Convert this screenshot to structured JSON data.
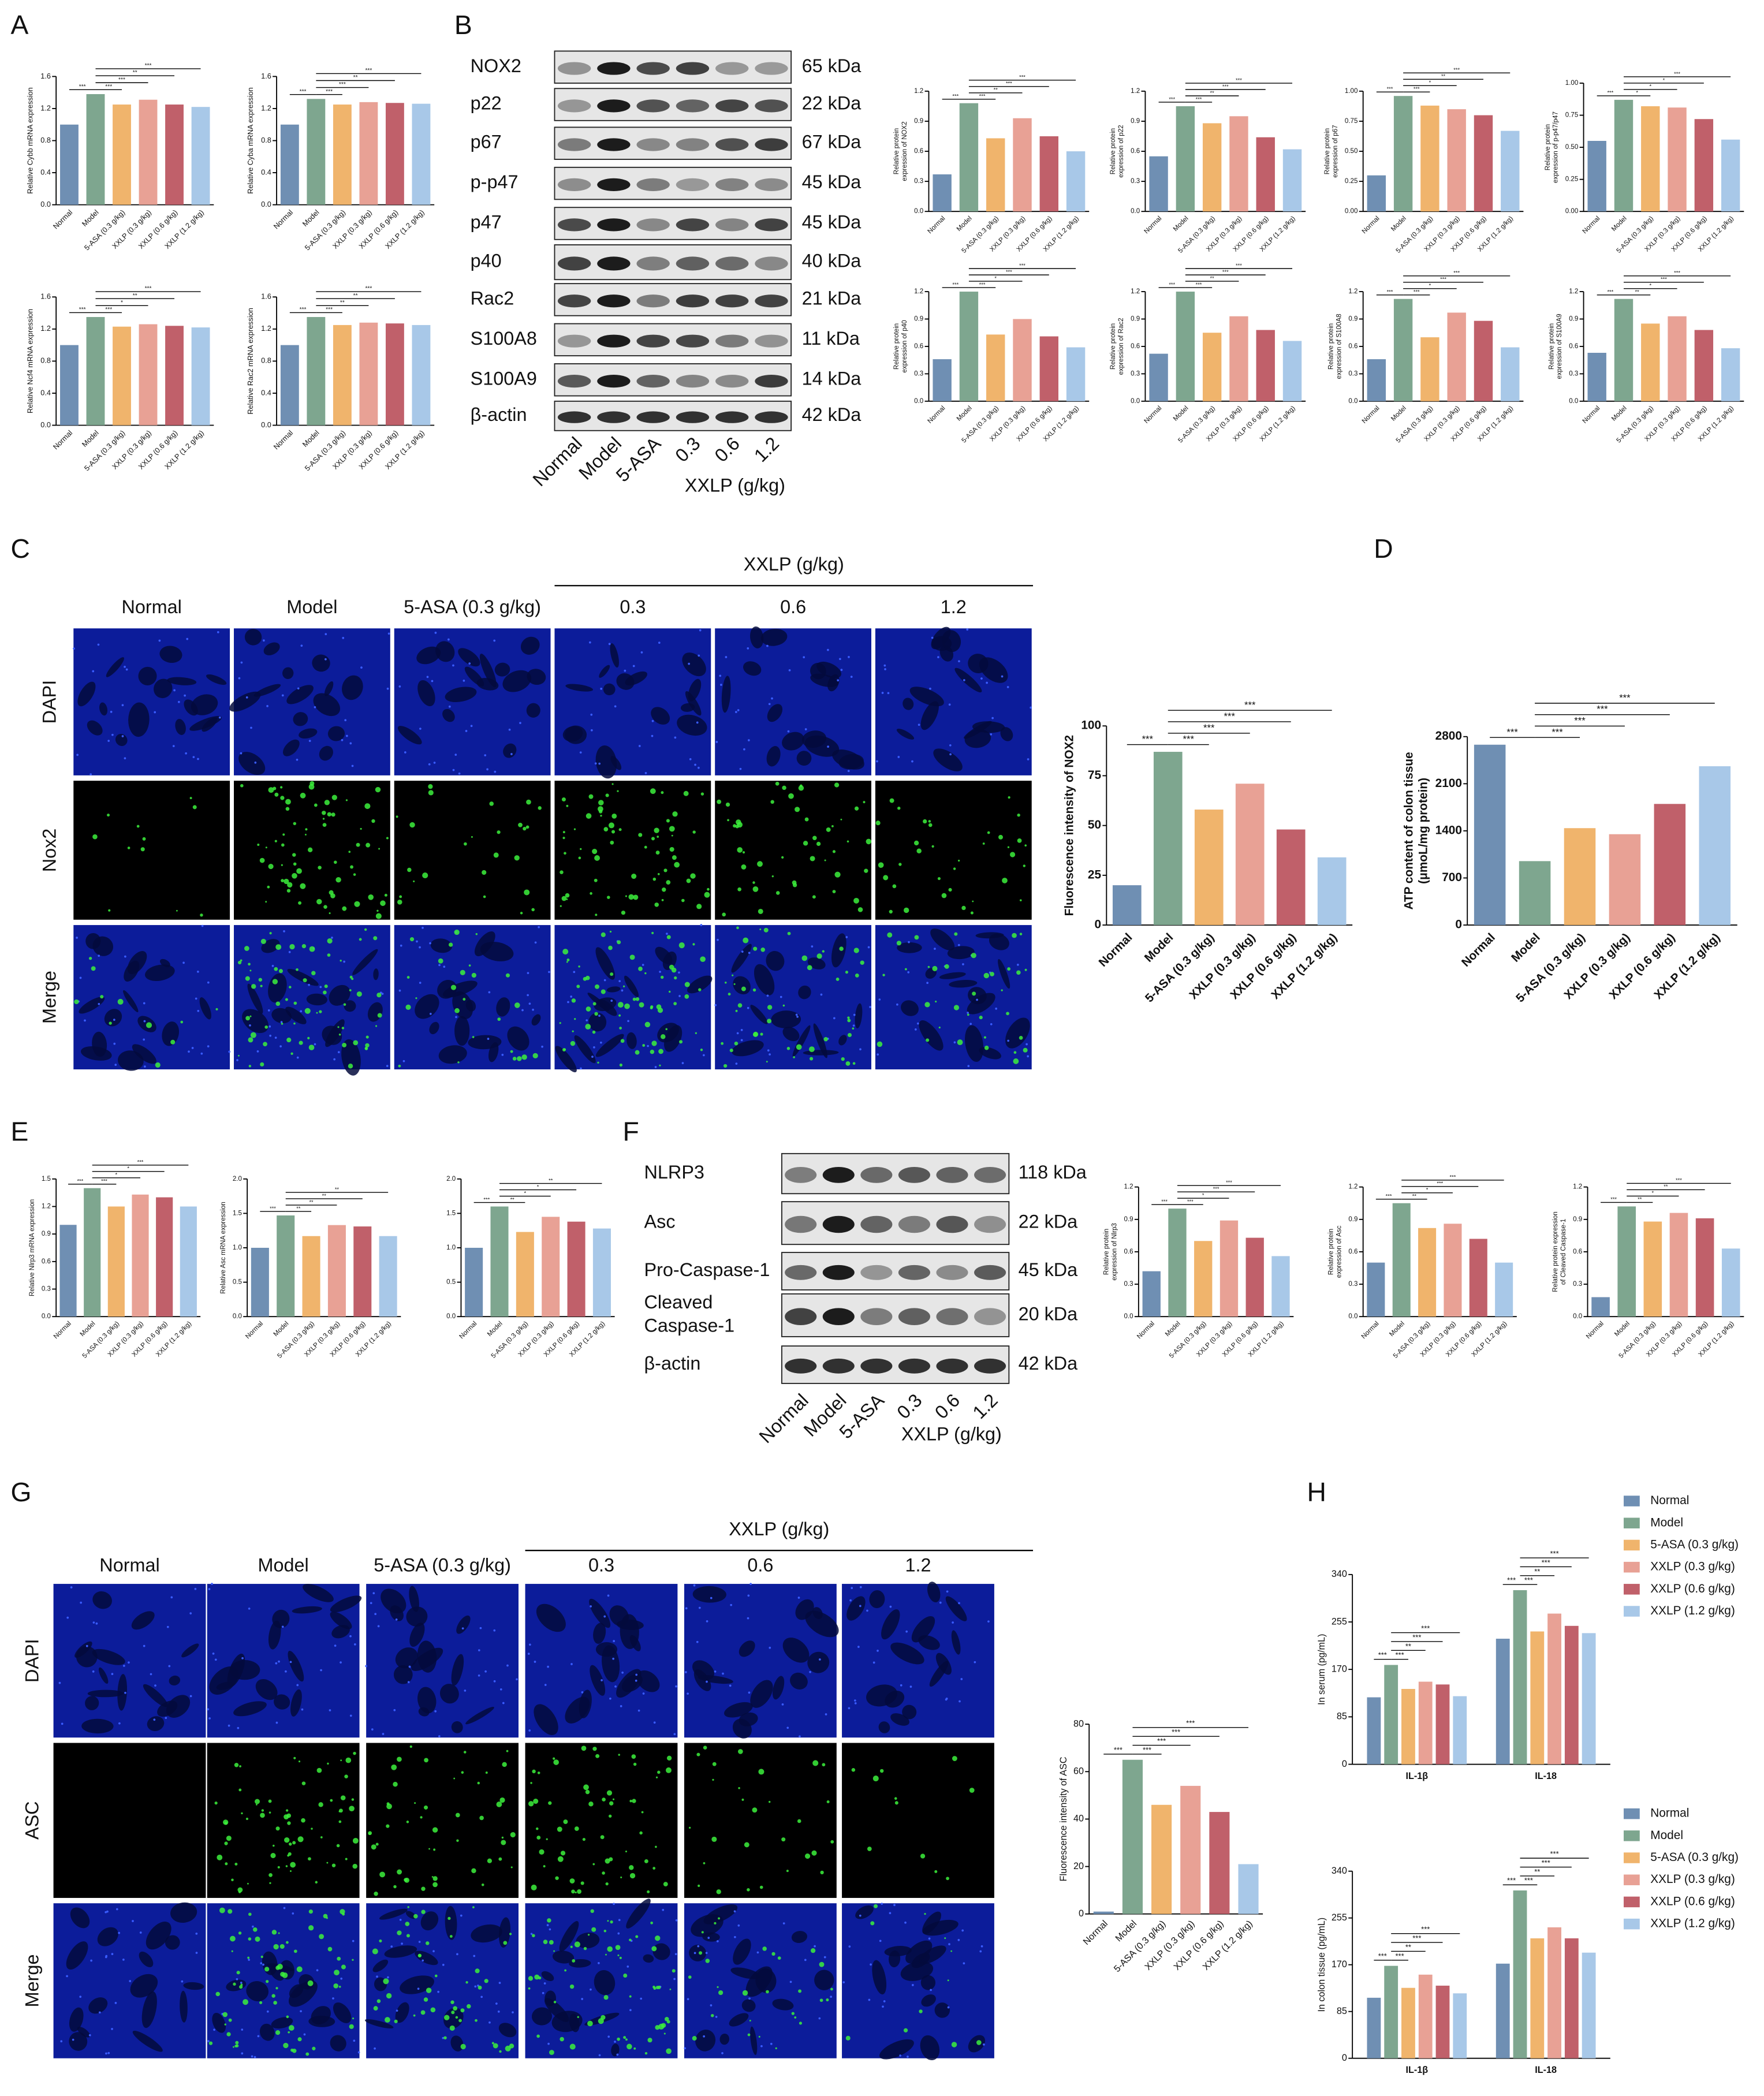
{
  "panel_labels": [
    "A",
    "B",
    "C",
    "D",
    "E",
    "F",
    "G",
    "H"
  ],
  "group_colors": [
    "#6f8fb3",
    "#7ea68f",
    "#f0b46c",
    "#e8a195",
    "#c0606a",
    "#a8c8e8"
  ],
  "blot_B": {
    "rows": [
      {
        "label": "NOX2",
        "size": "65 kDa"
      },
      {
        "label": "p22",
        "size": "22 kDa"
      },
      {
        "label": "p67",
        "size": "67 kDa"
      },
      {
        "label": "p-p47",
        "size": "45 kDa"
      },
      {
        "label": "p47",
        "size": "45 kDa"
      },
      {
        "label": "p40",
        "size": "40 kDa"
      },
      {
        "label": "Rac2",
        "size": "21 kDa"
      },
      {
        "label": "S100A8",
        "size": "11 kDa"
      },
      {
        "label": "S100A9",
        "size": "14 kDa"
      },
      {
        "label": "β-actin",
        "size": "42 kDa"
      }
    ],
    "lanes": [
      "Normal",
      "Model",
      "5-ASA",
      "0.3",
      "0.6",
      "1.2"
    ],
    "group": "XXLP (g/kg)"
  },
  "blot_F": {
    "rows": [
      {
        "label": [
          "NLRP3"
        ],
        "size": "118 kDa"
      },
      {
        "label": [
          "Asc"
        ],
        "size": "22 kDa"
      },
      {
        "label": [
          "Pro-Caspase-1"
        ],
        "size": "45 kDa"
      },
      {
        "label": [
          "Cleaved",
          "Caspase-1"
        ],
        "size": "20 kDa"
      },
      {
        "label": [
          "β-actin"
        ],
        "size": "42 kDa"
      }
    ],
    "lanes": [
      "Normal",
      "Model",
      "5-ASA",
      "0.3",
      "0.6",
      "1.2"
    ],
    "group": "XXLP (g/kg)"
  },
  "micro_C": {
    "columns": [
      "Normal",
      "Model",
      "5-ASA (0.3 g/kg)",
      "0.3",
      "0.6",
      "1.2"
    ],
    "group": "XXLP (g/kg)",
    "rows": [
      "DAPI",
      "Nox2",
      "Merge"
    ]
  },
  "micro_G": {
    "columns": [
      "Normal",
      "Model",
      "5-ASA (0.3 g/kg)",
      "0.3",
      "0.6",
      "1.2"
    ],
    "group": "XXLP (g/kg)",
    "rows": [
      "DAPI",
      "ASC",
      "Merge"
    ]
  },
  "chart_data": [
    {
      "type": "bar",
      "ylabel": "Relative Cybb mRNA expression",
      "categories": [
        "Normal",
        "Model",
        "5-ASA (0.3 g/kg)",
        "XXLP (0.3 g/kg)",
        "XXLP (0.6 g/kg)",
        "XXLP (1.2 g/kg)"
      ],
      "values": [
        1.0,
        1.38,
        1.25,
        1.31,
        1.25,
        1.22
      ],
      "ylim": [
        0,
        1.6
      ],
      "yticks": [
        {
          "value": 0,
          "label": "0.0"
        },
        0.4,
        0.8,
        1.2,
        1.6
      ],
      "annotations": [
        "***",
        "***",
        "***",
        "**",
        "***"
      ]
    },
    {
      "type": "bar",
      "ylabel": "Relative Cyba mRNA expression",
      "categories": [
        "Normal",
        "Model",
        "5-ASA (0.3 g/kg)",
        "XXLP (0.3 g/kg)",
        "XXLP (0.6 g/kg)",
        "XXLP (1.2 g/kg)"
      ],
      "values": [
        1.0,
        1.32,
        1.25,
        1.28,
        1.27,
        1.26
      ],
      "ylim": [
        0,
        1.6
      ],
      "yticks": [
        {
          "value": 0,
          "label": "0.0"
        },
        0.4,
        0.8,
        1.2,
        1.6
      ],
      "annotations": [
        "***",
        "***",
        "***",
        "**",
        "***"
      ]
    },
    {
      "type": "bar",
      "ylabel": "Relative Ncf4 mRNA expression",
      "categories": [
        "Normal",
        "Model",
        "5-ASA (0.3 g/kg)",
        "XXLP (0.3 g/kg)",
        "XXLP (0.6 g/kg)",
        "XXLP (1.2 g/kg)"
      ],
      "values": [
        1.0,
        1.35,
        1.23,
        1.26,
        1.24,
        1.22
      ],
      "ylim": [
        0,
        1.6
      ],
      "yticks": [
        {
          "value": 0,
          "label": "0.0"
        },
        0.4,
        0.8,
        1.2,
        1.6
      ],
      "annotations": [
        "***",
        "***",
        "*",
        "**",
        "***"
      ]
    },
    {
      "type": "bar",
      "ylabel": "Relative Rac2 mRNA expression",
      "categories": [
        "Normal",
        "Model",
        "5-ASA (0.3 g/kg)",
        "XXLP (0.3 g/kg)",
        "XXLP (0.6 g/kg)",
        "XXLP (1.2 g/kg)"
      ],
      "values": [
        1.0,
        1.35,
        1.25,
        1.28,
        1.27,
        1.25
      ],
      "ylim": [
        0,
        1.6
      ],
      "yticks": [
        {
          "value": 0,
          "label": "0.0"
        },
        0.4,
        0.8,
        1.2,
        1.6
      ],
      "annotations": [
        "***",
        "***",
        "**",
        "**",
        "***"
      ]
    },
    {
      "type": "bar",
      "ylabel": [
        "Relative protein",
        "expression of NOX2"
      ],
      "categories": [
        "Normal",
        "Model",
        "5-ASA (0.3 g/kg)",
        "XXLP (0.3 g/kg)",
        "XXLP (0.6 g/kg)",
        "XXLP (1.2 g/kg)"
      ],
      "values": [
        0.37,
        1.08,
        0.73,
        0.93,
        0.75,
        0.6
      ],
      "ylim": [
        0,
        1.2
      ],
      "yticks": [
        {
          "value": 0,
          "label": "0.0"
        },
        0.3,
        0.6,
        0.9,
        1.2
      ],
      "annotations": [
        "***",
        "***",
        "**",
        "***",
        "***"
      ]
    },
    {
      "type": "bar",
      "ylabel": [
        "Relative protein",
        "expression of p22"
      ],
      "categories": [
        "Normal",
        "Model",
        "5-ASA (0.3 g/kg)",
        "XXLP (0.3 g/kg)",
        "XXLP (0.6 g/kg)",
        "XXLP (1.2 g/kg)"
      ],
      "values": [
        0.55,
        1.05,
        0.88,
        0.95,
        0.74,
        0.62
      ],
      "ylim": [
        0,
        1.2
      ],
      "yticks": [
        {
          "value": 0,
          "label": "0.0"
        },
        0.3,
        0.6,
        0.9,
        1.2
      ],
      "annotations": [
        "***",
        "***",
        "**",
        "***",
        "***"
      ]
    },
    {
      "type": "bar",
      "ylabel": [
        "Relative protein",
        "expression of p67"
      ],
      "categories": [
        "Normal",
        "Model",
        "5-ASA (0.3 g/kg)",
        "XXLP (0.3 g/kg)",
        "XXLP (0.6 g/kg)",
        "XXLP (1.2 g/kg)"
      ],
      "values": [
        0.3,
        0.96,
        0.88,
        0.85,
        0.8,
        0.67
      ],
      "ylim": [
        0,
        1
      ],
      "yticks": [
        {
          "value": 0,
          "label": "0.00"
        },
        0.25,
        {
          "value": 0.5,
          "label": "0.50"
        },
        0.75,
        {
          "value": 1,
          "label": "1.00"
        }
      ],
      "annotations": [
        "***",
        "***",
        "*",
        "**",
        "***"
      ]
    },
    {
      "type": "bar",
      "ylabel": [
        "Relative protein",
        "expression of p-p47/p47"
      ],
      "categories": [
        "Normal",
        "Model",
        "5-ASA (0.3 g/kg)",
        "XXLP (0.3 g/kg)",
        "XXLP (0.6 g/kg)",
        "XXLP (1.2 g/kg)"
      ],
      "values": [
        0.55,
        0.87,
        0.82,
        0.81,
        0.72,
        0.56
      ],
      "ylim": [
        0,
        1
      ],
      "yticks": [
        {
          "value": 0,
          "label": "0.00"
        },
        0.25,
        {
          "value": 0.5,
          "label": "0.50"
        },
        0.75,
        {
          "value": 1,
          "label": "1.00"
        }
      ],
      "annotations": [
        "***",
        "*",
        "*",
        "*",
        "***"
      ]
    },
    {
      "type": "bar",
      "ylabel": [
        "Relative protein",
        "expression of p40"
      ],
      "categories": [
        "Normal",
        "Model",
        "5-ASA (0.3 g/kg)",
        "XXLP (0.3 g/kg)",
        "XXLP (0.6 g/kg)",
        "XXLP (1.2 g/kg)"
      ],
      "values": [
        0.46,
        1.2,
        0.73,
        0.9,
        0.71,
        0.59
      ],
      "ylim": [
        0,
        1.2
      ],
      "yticks": [
        {
          "value": 0,
          "label": "0.0"
        },
        0.3,
        0.6,
        0.9,
        1.2
      ],
      "annotations": [
        "***",
        "***",
        "*",
        "***",
        "***"
      ]
    },
    {
      "type": "bar",
      "ylabel": [
        "Relative protein",
        "expression of Rac2"
      ],
      "categories": [
        "Normal",
        "Model",
        "5-ASA (0.3 g/kg)",
        "XXLP (0.3 g/kg)",
        "XXLP (0.6 g/kg)",
        "XXLP (1.2 g/kg)"
      ],
      "values": [
        0.52,
        1.2,
        0.75,
        0.93,
        0.78,
        0.66
      ],
      "ylim": [
        0,
        1.2
      ],
      "yticks": [
        {
          "value": 0,
          "label": "0.0"
        },
        0.3,
        0.6,
        0.9,
        1.2
      ],
      "annotations": [
        "***",
        "***",
        "**",
        "***",
        "***"
      ]
    },
    {
      "type": "bar",
      "ylabel": [
        "Relative protein",
        "expression of S100A8"
      ],
      "categories": [
        "Normal",
        "Model",
        "5-ASA (0.3 g/kg)",
        "XXLP (0.3 g/kg)",
        "XXLP (0.6 g/kg)",
        "XXLP (1.2 g/kg)"
      ],
      "values": [
        0.46,
        1.12,
        0.7,
        0.97,
        0.88,
        0.59
      ],
      "ylim": [
        0,
        1.2
      ],
      "yticks": [
        {
          "value": 0,
          "label": "0.0"
        },
        0.3,
        0.6,
        0.9,
        1.2
      ],
      "annotations": [
        "***",
        "***",
        "*",
        "***",
        "***"
      ]
    },
    {
      "type": "bar",
      "ylabel": [
        "Relative protein",
        "expression of S100A9"
      ],
      "categories": [
        "Normal",
        "Model",
        "5-ASA (0.3 g/kg)",
        "XXLP (0.3 g/kg)",
        "XXLP (0.6 g/kg)",
        "XXLP (1.2 g/kg)"
      ],
      "values": [
        0.53,
        1.12,
        0.85,
        0.93,
        0.78,
        0.58
      ],
      "ylim": [
        0,
        1.2
      ],
      "yticks": [
        {
          "value": 0,
          "label": "0.0"
        },
        0.3,
        0.6,
        0.9,
        1.2
      ],
      "annotations": [
        "***",
        "**",
        "*",
        "***",
        "***"
      ]
    },
    {
      "type": "bar",
      "ylabel": "Fluorescence intensity of NOX2",
      "categories": [
        "Normal",
        "Model",
        "5-ASA (0.3 g/kg)",
        "XXLP (0.3 g/kg)",
        "XXLP (0.6 g/kg)",
        "XXLP (1.2 g/kg)"
      ],
      "values": [
        20,
        87,
        58,
        71,
        48,
        34
      ],
      "ylim": [
        0,
        100
      ],
      "yticks": [
        0,
        25,
        50,
        75,
        100
      ],
      "annotations": [
        "***",
        "***",
        "***",
        "***",
        "***"
      ]
    },
    {
      "type": "bar",
      "ylabel": [
        "ATP content of colon tissue",
        "(μmoL/mg protein)"
      ],
      "categories": [
        "Normal",
        "Model",
        "5-ASA (0.3 g/kg)",
        "XXLP (0.3 g/kg)",
        "XXLP (0.6 g/kg)",
        "XXLP (1.2 g/kg)"
      ],
      "values": [
        2680,
        950,
        1440,
        1350,
        1800,
        2360
      ],
      "ylim": [
        0,
        2800
      ],
      "yticks": [
        0,
        700,
        1400,
        2100,
        2800
      ],
      "annotations": [
        "***",
        "***",
        "***",
        "***",
        "***"
      ]
    },
    {
      "type": "bar",
      "ylabel": "Relative Nlrp3 mRNA expression",
      "categories": [
        "Normal",
        "Model",
        "5-ASA (0.3 g/kg)",
        "XXLP (0.3 g/kg)",
        "XXLP (0.6 g/kg)",
        "XXLP (1.2 g/kg)"
      ],
      "values": [
        1.0,
        1.4,
        1.2,
        1.33,
        1.3,
        1.2
      ],
      "ylim": [
        0,
        1.5
      ],
      "yticks": [
        {
          "value": 0,
          "label": "0.0"
        },
        0.3,
        0.6,
        0.9,
        1.2,
        1.5
      ],
      "annotations": [
        "***",
        "***",
        "*",
        "*",
        "***"
      ]
    },
    {
      "type": "bar",
      "ylabel": "Relative Asc mRNA expression",
      "categories": [
        "Normal",
        "Model",
        "5-ASA (0.3 g/kg)",
        "XXLP (0.3 g/kg)",
        "XXLP (0.6 g/kg)",
        "XXLP (1.2 g/kg)"
      ],
      "values": [
        1.0,
        1.47,
        1.17,
        1.33,
        1.31,
        1.17
      ],
      "ylim": [
        0,
        2
      ],
      "yticks": [
        {
          "value": 0,
          "label": "0.0"
        },
        0.5,
        {
          "value": 1,
          "label": "1.0"
        },
        1.5,
        {
          "value": 2,
          "label": "2.0"
        }
      ],
      "annotations": [
        "***",
        "**",
        "**",
        "**",
        "**"
      ]
    },
    {
      "type": "bar",
      "categories": [
        "Normal",
        "Model",
        "5-ASA (0.3 g/kg)",
        "XXLP (0.3 g/kg)",
        "XXLP (0.6 g/kg)",
        "XXLP (1.2 g/kg)"
      ],
      "values": [
        1.0,
        1.6,
        1.23,
        1.45,
        1.38,
        1.28
      ],
      "ylim": [
        0,
        2
      ],
      "yticks": [
        {
          "value": 0,
          "label": "0.0"
        },
        0.5,
        {
          "value": 1,
          "label": "1.0"
        },
        1.5,
        {
          "value": 2,
          "label": "2.0"
        }
      ],
      "annotations": [
        "***",
        "**",
        "*",
        "*",
        "**"
      ]
    },
    {
      "type": "bar",
      "ylabel": [
        "Relative protein",
        "expression of Nlrp3"
      ],
      "categories": [
        "Normal",
        "Model",
        "5-ASA (0.3 g/kg)",
        "XXLP (0.3 g/kg)",
        "XXLP (0.6 g/kg)",
        "XXLP (1.2 g/kg)"
      ],
      "values": [
        0.42,
        1.0,
        0.7,
        0.89,
        0.73,
        0.56
      ],
      "ylim": [
        0,
        1.2
      ],
      "yticks": [
        {
          "value": 0,
          "label": "0.0"
        },
        0.3,
        0.6,
        0.9,
        1.2
      ],
      "annotations": [
        "***",
        "***",
        "*",
        "***",
        "***"
      ]
    },
    {
      "type": "bar",
      "ylabel": [
        "Relative protein",
        "expression of Asc"
      ],
      "categories": [
        "Normal",
        "Model",
        "5-ASA (0.3 g/kg)",
        "XXLP (0.3 g/kg)",
        "XXLP (0.6 g/kg)",
        "XXLP (1.2 g/kg)"
      ],
      "values": [
        0.5,
        1.05,
        0.82,
        0.86,
        0.72,
        0.5
      ],
      "ylim": [
        0,
        1.2
      ],
      "yticks": [
        {
          "value": 0,
          "label": "0.0"
        },
        0.3,
        0.6,
        0.9,
        1.2
      ],
      "annotations": [
        "***",
        "**",
        "*",
        "***",
        "***"
      ]
    },
    {
      "type": "bar",
      "ylabel": [
        "Relative protein expression",
        "of Cleaved Caspase-1"
      ],
      "categories": [
        "Normal",
        "Model",
        "5-ASA (0.3 g/kg)",
        "XXLP (0.3 g/kg)",
        "XXLP (0.6 g/kg)",
        "XXLP (1.2 g/kg)"
      ],
      "values": [
        0.18,
        1.02,
        0.88,
        0.96,
        0.91,
        0.63
      ],
      "ylim": [
        0,
        1.2
      ],
      "yticks": [
        {
          "value": 0,
          "label": "0.0"
        },
        0.3,
        0.6,
        0.9,
        1.2
      ],
      "annotations": [
        "***",
        "**",
        "*",
        "**",
        "***"
      ]
    },
    {
      "type": "bar",
      "ylabel": "Fluorescence intensity of ASC",
      "categories": [
        "Normal",
        "Model",
        "5-ASA (0.3 g/kg)",
        "XXLP (0.3 g/kg)",
        "XXLP (0.6 g/kg)",
        "XXLP (1.2 g/kg)"
      ],
      "values": [
        1,
        65,
        46,
        54,
        43,
        21
      ],
      "ylim": [
        0,
        80
      ],
      "yticks": [
        0,
        20,
        40,
        60,
        80
      ],
      "annotations": [
        "***",
        "***",
        "***",
        "***",
        "***"
      ]
    },
    {
      "type": "bar",
      "ylabel": "In serum (pg/mL)",
      "categories": [
        "IL-1β",
        "IL-18"
      ],
      "ylim": [
        0,
        340
      ],
      "yticks": [
        0,
        85,
        170,
        255,
        340
      ],
      "legend": "right",
      "series": [
        {
          "name": "Normal",
          "color": "#6f8fb3",
          "values": [
            120,
            225
          ]
        },
        {
          "name": "Model",
          "color": "#7ea68f",
          "values": [
            178,
            312
          ]
        },
        {
          "name": "5-ASA (0.3 g/kg)",
          "color": "#f0b46c",
          "values": [
            135,
            238
          ]
        },
        {
          "name": "XXLP (0.3 g/kg)",
          "color": "#e8a195",
          "values": [
            148,
            270
          ]
        },
        {
          "name": "XXLP (0.6 g/kg)",
          "color": "#c0606a",
          "values": [
            143,
            248
          ]
        },
        {
          "name": "XXLP (1.2 g/kg)",
          "color": "#a8c8e8",
          "values": [
            122,
            235
          ]
        }
      ],
      "annotations": [
        [
          "***",
          "***",
          "**",
          "***",
          "***"
        ],
        [
          "***",
          "***",
          "**",
          "***",
          "***"
        ]
      ]
    },
    {
      "type": "bar",
      "ylabel": "In colon tissue (pg/mL)",
      "categories": [
        "IL-1β",
        "IL-18"
      ],
      "ylim": [
        0,
        340
      ],
      "yticks": [
        0,
        85,
        170,
        255,
        340
      ],
      "legend": "right",
      "series": [
        {
          "name": "Normal",
          "color": "#6f8fb3",
          "values": [
            110,
            172
          ]
        },
        {
          "name": "Model",
          "color": "#7ea68f",
          "values": [
            168,
            305
          ]
        },
        {
          "name": "5-ASA (0.3 g/kg)",
          "color": "#f0b46c",
          "values": [
            128,
            218
          ]
        },
        {
          "name": "XXLP (0.3 g/kg)",
          "color": "#e8a195",
          "values": [
            152,
            238
          ]
        },
        {
          "name": "XXLP (0.6 g/kg)",
          "color": "#c0606a",
          "values": [
            132,
            218
          ]
        },
        {
          "name": "XXLP (1.2 g/kg)",
          "color": "#a8c8e8",
          "values": [
            118,
            192
          ]
        }
      ],
      "annotations": [
        [
          "***",
          "***",
          "**",
          "***",
          "***"
        ],
        [
          "***",
          "***",
          "**",
          "***",
          "***"
        ]
      ]
    }
  ]
}
